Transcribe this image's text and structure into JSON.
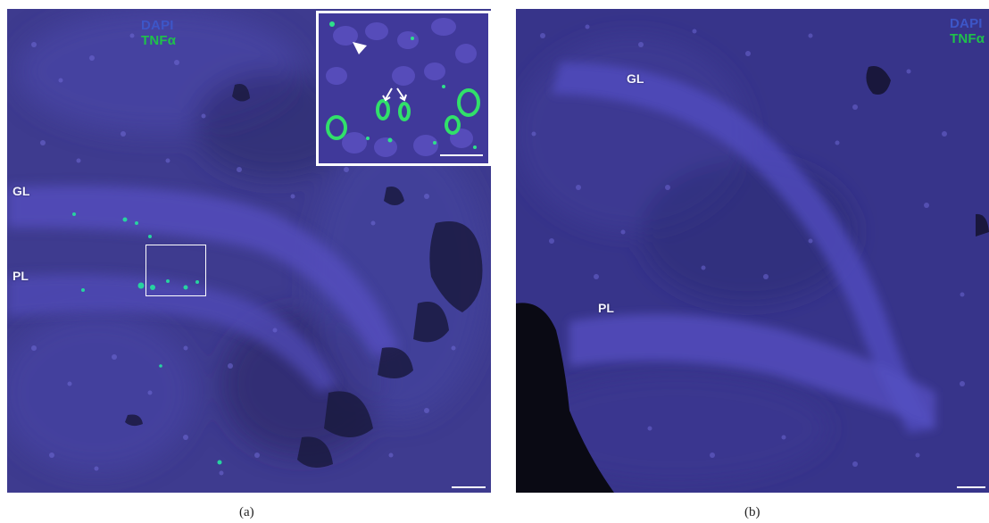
{
  "panels": [
    {
      "caption": "(a)",
      "legend": {
        "line1": "DAPI",
        "line2": "TNFα"
      },
      "region_labels": {
        "gl": "GL",
        "pl": "PL"
      },
      "has_inset": true,
      "has_roi_box": true
    },
    {
      "caption": "(b)",
      "legend": {
        "line1": "DAPI",
        "line2": "TNFα"
      },
      "region_labels": {
        "gl": "GL",
        "pl": "PL"
      },
      "has_inset": false,
      "has_roi_box": false
    }
  ],
  "colors": {
    "dapi": "#3d56c8",
    "tnf": "#1fc24a",
    "tissue_background": "#3c3a8e",
    "annotation": "#ffffff"
  }
}
